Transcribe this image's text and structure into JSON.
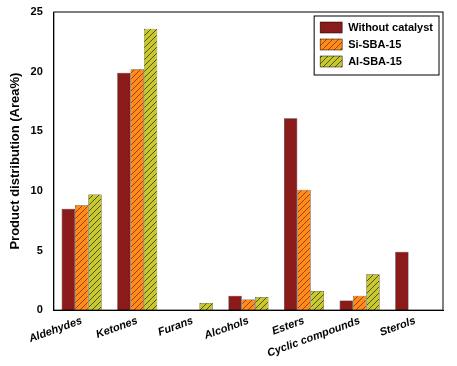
{
  "chart_data": {
    "type": "bar",
    "ylabel": "Product distribution (Area%)",
    "categories": [
      "Aldehydes",
      "Ketones",
      "Furans",
      "Alcohols",
      "Esters",
      "Cyclic compounds",
      "Sterols"
    ],
    "series": [
      {
        "name": "Without catalyst",
        "color": "#8b1a1a",
        "values": [
          8.5,
          19.9,
          0,
          1.2,
          16.1,
          0.8,
          4.9
        ]
      },
      {
        "name": "Si-SBA-15",
        "color": "#ff8c1a",
        "values": [
          8.8,
          20.2,
          0,
          0.9,
          10.1,
          1.2,
          0
        ]
      },
      {
        "name": "Al-SBA-15",
        "color": "#c8c832",
        "values": [
          9.7,
          23.6,
          0.6,
          1.1,
          1.6,
          3.0,
          0
        ]
      }
    ],
    "ylim": [
      0,
      25
    ],
    "yticks": [
      0,
      5,
      10,
      15,
      20,
      25
    ],
    "grid": false,
    "legend": "upper right"
  }
}
